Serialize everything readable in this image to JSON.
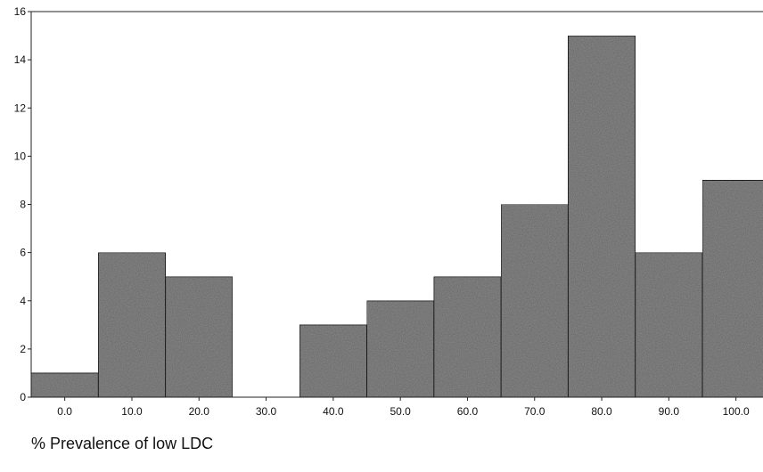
{
  "chart_data": {
    "type": "bar",
    "categories": [
      "0.0",
      "10.0",
      "20.0",
      "30.0",
      "40.0",
      "50.0",
      "60.0",
      "70.0",
      "80.0",
      "90.0",
      "100.0"
    ],
    "values": [
      1,
      6,
      5,
      0,
      3,
      4,
      5,
      8,
      15,
      6,
      9
    ],
    "xlabel": "% Prevalence of low LDC",
    "ylabel": "",
    "ylim": [
      0,
      16
    ],
    "yticks": [
      "0",
      "2",
      "4",
      "6",
      "8",
      "10",
      "12",
      "14",
      "16"
    ],
    "grid": false,
    "colors": {
      "bar_fill": "#8c8c8c",
      "bar_stroke": "#222222",
      "axis": "#222222"
    }
  }
}
